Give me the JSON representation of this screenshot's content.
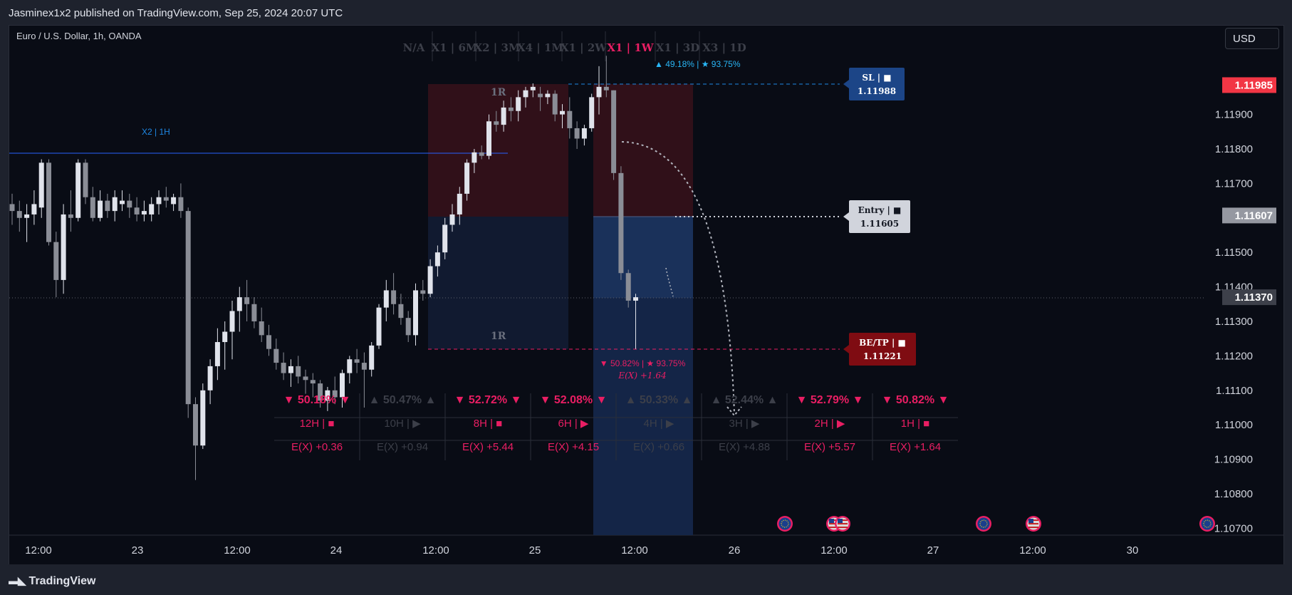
{
  "header": {
    "publisher_line": "Jasminex1x2 published on TradingView.com, Sep 25, 2024 20:07 UTC"
  },
  "footer": {
    "brand": "TradingView"
  },
  "currency_button": "USD",
  "chart_data": {
    "type": "candlestick",
    "title": "Euro / U.S. Dollar, 1h, OANDA",
    "ylim": [
      1.1063,
      1.1206
    ],
    "price_ticks": [
      "1.11900",
      "1.11800",
      "1.11700",
      "1.11500",
      "1.11400",
      "1.11300",
      "1.11200",
      "1.11100",
      "1.11000",
      "1.10900",
      "1.10800",
      "1.10700"
    ],
    "x_ticks": [
      "12:00",
      "23",
      "12:00",
      "24",
      "12:00",
      "25",
      "12:00",
      "26",
      "12:00",
      "27",
      "12:00",
      "30"
    ],
    "price_tags": [
      {
        "value": "1.11985",
        "color": "#f23645",
        "text_color": "#ffffff"
      },
      {
        "value": "1.11607",
        "color": "#9598a1",
        "text_color": "#ffffff"
      },
      {
        "value": "1.11370",
        "color": "#3d404a",
        "text_color": "#ffffff"
      }
    ],
    "timeframe_bar": {
      "items": [
        "N/A",
        "X1 | 6M",
        "X2 | 3M",
        "X4 | 1M",
        "X1 | 2W",
        "X1 | 1W",
        "X1 | 3D",
        "X3 | 1D"
      ],
      "active": "X1 | 1W",
      "stats": "▲ 49.18% | ★ 93.75%"
    },
    "level_line_label": "X2 | 1H",
    "zone_labels": [
      "1R",
      "1R"
    ],
    "tags": {
      "sl": {
        "title": "SL | ■",
        "value": "1.11988"
      },
      "entry": {
        "title": "Entry | ■",
        "value": "1.11605"
      },
      "be_tp": {
        "title": "BE/TP | ■",
        "value": "1.11221"
      }
    },
    "trade_stats": {
      "line1": "▼ 50.82% | ★ 93.75%",
      "line2": "E(X) +1.64"
    },
    "table": {
      "rows_pct": [
        "▼ 50.18% ▼",
        "▲ 50.47% ▲",
        "▼ 52.72% ▼",
        "▼ 52.08% ▼",
        "▲ 50.33% ▲",
        "▲ 52.44% ▲",
        "▼ 52.79% ▼",
        "▼ 50.82% ▼"
      ],
      "rows_tf": [
        "12H | ■",
        "10H | ▶",
        "8H | ■",
        "6H | ▶",
        "4H | ▶",
        "3H | ▶",
        "2H | ▶",
        "1H | ■"
      ],
      "rows_ex": [
        "E(X) +0.36",
        "E(X) +0.94",
        "E(X) +5.44",
        "E(X) +4.15",
        "E(X) +0.66",
        "E(X) +4.88",
        "E(X) +5.57",
        "E(X) +1.64"
      ],
      "active": [
        true,
        false,
        true,
        true,
        false,
        false,
        true,
        true
      ]
    },
    "candles": [
      {
        "o": 1.1164,
        "h": 1.1167,
        "l": 1.1158,
        "c": 1.1162
      },
      {
        "o": 1.1162,
        "h": 1.1165,
        "l": 1.1156,
        "c": 1.116
      },
      {
        "o": 1.116,
        "h": 1.1164,
        "l": 1.1153,
        "c": 1.1161
      },
      {
        "o": 1.1161,
        "h": 1.1168,
        "l": 1.1158,
        "c": 1.1164
      },
      {
        "o": 1.1163,
        "h": 1.1177,
        "l": 1.116,
        "c": 1.1176
      },
      {
        "o": 1.1176,
        "h": 1.1177,
        "l": 1.1152,
        "c": 1.1153
      },
      {
        "o": 1.1153,
        "h": 1.1156,
        "l": 1.1137,
        "c": 1.1142
      },
      {
        "o": 1.1142,
        "h": 1.1164,
        "l": 1.1138,
        "c": 1.1161
      },
      {
        "o": 1.1161,
        "h": 1.1168,
        "l": 1.1156,
        "c": 1.116
      },
      {
        "o": 1.116,
        "h": 1.1177,
        "l": 1.1159,
        "c": 1.1176
      },
      {
        "o": 1.1176,
        "h": 1.1177,
        "l": 1.1164,
        "c": 1.1166
      },
      {
        "o": 1.1166,
        "h": 1.1169,
        "l": 1.1159,
        "c": 1.116
      },
      {
        "o": 1.116,
        "h": 1.1168,
        "l": 1.1159,
        "c": 1.1165
      },
      {
        "o": 1.1165,
        "h": 1.1167,
        "l": 1.116,
        "c": 1.1162
      },
      {
        "o": 1.1162,
        "h": 1.1168,
        "l": 1.1159,
        "c": 1.1166
      },
      {
        "o": 1.1164,
        "h": 1.1168,
        "l": 1.1162,
        "c": 1.1165
      },
      {
        "o": 1.1165,
        "h": 1.1167,
        "l": 1.116,
        "c": 1.1163
      },
      {
        "o": 1.1163,
        "h": 1.1166,
        "l": 1.1159,
        "c": 1.1161
      },
      {
        "o": 1.1161,
        "h": 1.1165,
        "l": 1.1159,
        "c": 1.1162
      },
      {
        "o": 1.1161,
        "h": 1.1166,
        "l": 1.1159,
        "c": 1.1164
      },
      {
        "o": 1.1164,
        "h": 1.1168,
        "l": 1.1161,
        "c": 1.1166
      },
      {
        "o": 1.1166,
        "h": 1.1169,
        "l": 1.1163,
        "c": 1.1165
      },
      {
        "o": 1.1164,
        "h": 1.1167,
        "l": 1.1162,
        "c": 1.1166
      },
      {
        "o": 1.1166,
        "h": 1.117,
        "l": 1.116,
        "c": 1.1162
      },
      {
        "o": 1.1162,
        "h": 1.1163,
        "l": 1.1102,
        "c": 1.1106
      },
      {
        "o": 1.1106,
        "h": 1.1108,
        "l": 1.1084,
        "c": 1.1094
      },
      {
        "o": 1.1094,
        "h": 1.1112,
        "l": 1.1093,
        "c": 1.111
      },
      {
        "o": 1.111,
        "h": 1.1119,
        "l": 1.1106,
        "c": 1.1117
      },
      {
        "o": 1.1117,
        "h": 1.1128,
        "l": 1.1113,
        "c": 1.1124
      },
      {
        "o": 1.1124,
        "h": 1.113,
        "l": 1.1116,
        "c": 1.1127
      },
      {
        "o": 1.1127,
        "h": 1.1136,
        "l": 1.1119,
        "c": 1.1133
      },
      {
        "o": 1.1133,
        "h": 1.114,
        "l": 1.1127,
        "c": 1.1137
      },
      {
        "o": 1.1137,
        "h": 1.1142,
        "l": 1.113,
        "c": 1.1135
      },
      {
        "o": 1.1135,
        "h": 1.1137,
        "l": 1.1128,
        "c": 1.113
      },
      {
        "o": 1.113,
        "h": 1.1134,
        "l": 1.1124,
        "c": 1.1126
      },
      {
        "o": 1.1126,
        "h": 1.1129,
        "l": 1.112,
        "c": 1.1122
      },
      {
        "o": 1.1122,
        "h": 1.1125,
        "l": 1.1116,
        "c": 1.1118
      },
      {
        "o": 1.1118,
        "h": 1.1121,
        "l": 1.1113,
        "c": 1.1115
      },
      {
        "o": 1.1115,
        "h": 1.1119,
        "l": 1.1111,
        "c": 1.1117
      },
      {
        "o": 1.1117,
        "h": 1.112,
        "l": 1.1112,
        "c": 1.1114
      },
      {
        "o": 1.1114,
        "h": 1.1116,
        "l": 1.1109,
        "c": 1.1113
      },
      {
        "o": 1.1113,
        "h": 1.1115,
        "l": 1.1108,
        "c": 1.1112
      },
      {
        "o": 1.1112,
        "h": 1.1113,
        "l": 1.1105,
        "c": 1.1107
      },
      {
        "o": 1.1107,
        "h": 1.1111,
        "l": 1.1104,
        "c": 1.111
      },
      {
        "o": 1.111,
        "h": 1.1114,
        "l": 1.1106,
        "c": 1.1108
      },
      {
        "o": 1.1108,
        "h": 1.1116,
        "l": 1.1105,
        "c": 1.1115
      },
      {
        "o": 1.1115,
        "h": 1.112,
        "l": 1.1112,
        "c": 1.1119
      },
      {
        "o": 1.1119,
        "h": 1.1122,
        "l": 1.1115,
        "c": 1.1118
      },
      {
        "o": 1.1118,
        "h": 1.1121,
        "l": 1.1105,
        "c": 1.1116
      },
      {
        "o": 1.1116,
        "h": 1.1124,
        "l": 1.1114,
        "c": 1.1123
      },
      {
        "o": 1.1123,
        "h": 1.1135,
        "l": 1.1122,
        "c": 1.1134
      },
      {
        "o": 1.1134,
        "h": 1.1142,
        "l": 1.113,
        "c": 1.1139
      },
      {
        "o": 1.1139,
        "h": 1.1144,
        "l": 1.1132,
        "c": 1.1135
      },
      {
        "o": 1.1135,
        "h": 1.1138,
        "l": 1.1129,
        "c": 1.1131
      },
      {
        "o": 1.1131,
        "h": 1.1133,
        "l": 1.1124,
        "c": 1.1126
      },
      {
        "o": 1.1126,
        "h": 1.1141,
        "l": 1.1123,
        "c": 1.1139
      },
      {
        "o": 1.1139,
        "h": 1.1142,
        "l": 1.1136,
        "c": 1.1138
      },
      {
        "o": 1.1138,
        "h": 1.1148,
        "l": 1.1137,
        "c": 1.1146
      },
      {
        "o": 1.1146,
        "h": 1.1152,
        "l": 1.1143,
        "c": 1.115
      },
      {
        "o": 1.115,
        "h": 1.116,
        "l": 1.1148,
        "c": 1.1158
      },
      {
        "o": 1.1158,
        "h": 1.1164,
        "l": 1.1156,
        "c": 1.1161
      },
      {
        "o": 1.1161,
        "h": 1.1169,
        "l": 1.1158,
        "c": 1.1167
      },
      {
        "o": 1.1167,
        "h": 1.1177,
        "l": 1.1165,
        "c": 1.1176
      },
      {
        "o": 1.1176,
        "h": 1.118,
        "l": 1.1173,
        "c": 1.1179
      },
      {
        "o": 1.1179,
        "h": 1.1181,
        "l": 1.1177,
        "c": 1.1178
      },
      {
        "o": 1.1178,
        "h": 1.119,
        "l": 1.1177,
        "c": 1.1188
      },
      {
        "o": 1.1188,
        "h": 1.1191,
        "l": 1.1185,
        "c": 1.1187
      },
      {
        "o": 1.1187,
        "h": 1.1194,
        "l": 1.1185,
        "c": 1.1192
      },
      {
        "o": 1.1192,
        "h": 1.1195,
        "l": 1.1188,
        "c": 1.1191
      },
      {
        "o": 1.1191,
        "h": 1.1197,
        "l": 1.1188,
        "c": 1.1195
      },
      {
        "o": 1.1195,
        "h": 1.1198,
        "l": 1.1192,
        "c": 1.1197
      },
      {
        "o": 1.1197,
        "h": 1.1199,
        "l": 1.1195,
        "c": 1.1198
      },
      {
        "o": 1.1196,
        "h": 1.1198,
        "l": 1.1191,
        "c": 1.1195
      },
      {
        "o": 1.1195,
        "h": 1.1197,
        "l": 1.1193,
        "c": 1.1196
      },
      {
        "o": 1.1196,
        "h": 1.1197,
        "l": 1.1188,
        "c": 1.119
      },
      {
        "o": 1.119,
        "h": 1.1193,
        "l": 1.1186,
        "c": 1.1191
      },
      {
        "o": 1.1191,
        "h": 1.1195,
        "l": 1.1183,
        "c": 1.1186
      },
      {
        "o": 1.1186,
        "h": 1.1188,
        "l": 1.118,
        "c": 1.1183
      },
      {
        "o": 1.1183,
        "h": 1.1187,
        "l": 1.1181,
        "c": 1.1186
      },
      {
        "o": 1.1186,
        "h": 1.1196,
        "l": 1.1185,
        "c": 1.1195
      },
      {
        "o": 1.1195,
        "h": 1.1204,
        "l": 1.119,
        "c": 1.1198
      },
      {
        "o": 1.1198,
        "h": 1.1207,
        "l": 1.1195,
        "c": 1.1197
      },
      {
        "o": 1.1197,
        "h": 1.1197,
        "l": 1.1171,
        "c": 1.1173
      },
      {
        "o": 1.1173,
        "h": 1.1175,
        "l": 1.1142,
        "c": 1.1144
      },
      {
        "o": 1.1144,
        "h": 1.1145,
        "l": 1.1134,
        "c": 1.1136
      },
      {
        "o": 1.1136,
        "h": 1.1138,
        "l": 1.1122,
        "c": 1.1137
      }
    ]
  }
}
